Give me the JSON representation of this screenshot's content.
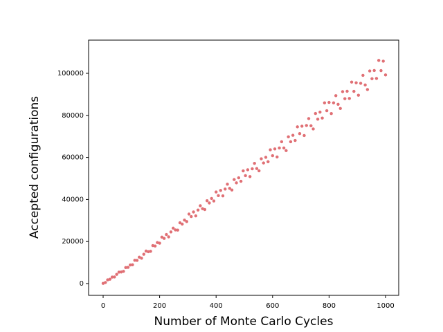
{
  "chart_data": {
    "type": "scatter",
    "x_label": "Number of Monte Carlo Cycles",
    "y_label": "Accepted configurations",
    "color": "#e07075",
    "xlim": [
      -51.5,
      1046.6
    ],
    "ylim": [
      -5592,
      115789
    ],
    "xticks": [
      0,
      200,
      400,
      600,
      800,
      1000
    ],
    "yticks": [
      0,
      20000,
      40000,
      60000,
      80000,
      100000
    ],
    "grid": false,
    "x": [
      0,
      8,
      16,
      24,
      32,
      40,
      48,
      56,
      64,
      72,
      80,
      88,
      96,
      104,
      112,
      120,
      128,
      136,
      144,
      152,
      160,
      168,
      176,
      184,
      192,
      200,
      208,
      216,
      224,
      232,
      240,
      248,
      256,
      264,
      272,
      280,
      288,
      296,
      304,
      312,
      320,
      328,
      336,
      344,
      352,
      360,
      368,
      376,
      384,
      392,
      400,
      408,
      416,
      424,
      432,
      440,
      448,
      456,
      464,
      472,
      480,
      488,
      496,
      504,
      512,
      520,
      528,
      536,
      544,
      552,
      560,
      568,
      576,
      584,
      592,
      600,
      608,
      616,
      624,
      632,
      640,
      648,
      656,
      664,
      672,
      680,
      688,
      696,
      704,
      712,
      720,
      728,
      736,
      744,
      752,
      760,
      768,
      776,
      784,
      792,
      800,
      808,
      816,
      824,
      832,
      840,
      848,
      856,
      864,
      872,
      880,
      888,
      896,
      904,
      912,
      920,
      928,
      936,
      944,
      952,
      960,
      968,
      976,
      984,
      992,
      1000
    ],
    "values": [
      90,
      516,
      1782,
      2076,
      3110,
      3150,
      4374,
      5446,
      5512,
      5820,
      7620,
      7698,
      8874,
      8948,
      11094,
      11020,
      12550,
      12078,
      13942,
      15462,
      15160,
      15340,
      18068,
      17874,
      19498,
      19220,
      22086,
      21484,
      23350,
      22206,
      24550,
      26358,
      25528,
      25420,
      28916,
      28290,
      30202,
      29492,
      33058,
      31888,
      34050,
      32194,
      34978,
      37034,
      35636,
      35200,
      39424,
      38326,
      40486,
      39304,
      43570,
      41832,
      44290,
      41722,
      44946,
      47250,
      45284,
      44520,
      49472,
      47902,
      50310,
      48656,
      53602,
      51336,
      54130,
      50890,
      54594,
      57186,
      54692,
      53640,
      59360,
      57358,
      60054,
      57968,
      63634,
      60840,
      64050,
      60218,
      64482,
      67442,
      64500,
      63240,
      69808,
      67454,
      70518,
      68080,
      74546,
      71304,
      74870,
      70406,
      75190,
      78478,
      75048,
      73540,
      80916,
      78170,
      81562,
      78732,
      85958,
      82228,
      86150,
      80854,
      85958,
      89374,
      85256,
      83300,
      91284,
      87946,
      91466,
      88044,
      95830,
      91412,
      95510,
      89582,
      95246,
      99030,
      94464,
      92300,
      101132,
      97442,
      101330,
      97556,
      106142,
      101276,
      105790,
      99230
    ]
  }
}
